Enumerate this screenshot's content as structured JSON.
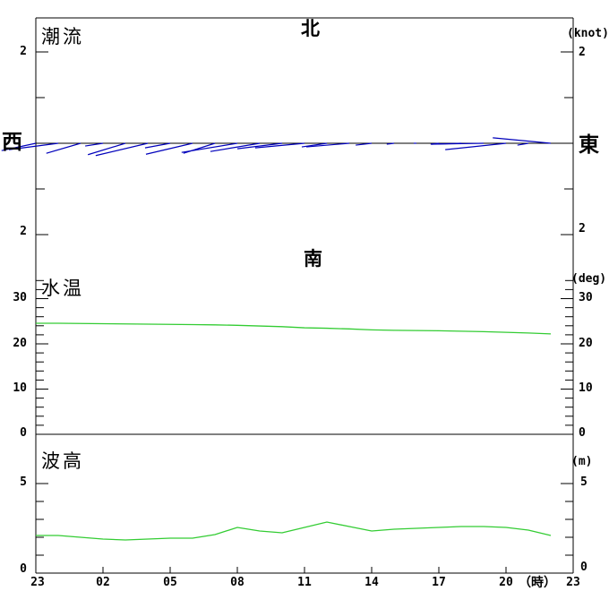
{
  "panel_titles": {
    "current": "潮流",
    "temperature": "水温",
    "wave": "波高"
  },
  "direction_labels": {
    "north": "北",
    "south": "南",
    "west": "西",
    "east": "東"
  },
  "unit_labels": {
    "current": "(knot)",
    "temperature": "(deg)",
    "wave": "(m)"
  },
  "y_axis": {
    "current_upper": "2",
    "current_lower": "2",
    "temp": [
      "30",
      "20",
      "10",
      "0"
    ],
    "wave": [
      "5",
      "0"
    ]
  },
  "x_axis": {
    "labels": [
      "23",
      "02",
      "05",
      "08",
      "11",
      "14",
      "17",
      "20",
      "23"
    ],
    "hour_suffix": "（時）"
  },
  "colors": {
    "background": "#ffffff",
    "axis": "#000000",
    "current_stick": "#0000bb",
    "temperature_line": "#33cc33",
    "wave_line": "#33cc33"
  },
  "chart_data": [
    {
      "type": "scatter",
      "subtype": "vector-stick",
      "title": "潮流",
      "ylabel": "(knot)",
      "legend_position": "none",
      "grid": false,
      "ylim": [
        -2,
        2
      ],
      "axis_note": "north up / south down, west left / east right",
      "hours": [
        23,
        0,
        1,
        2,
        3,
        4,
        5,
        6,
        7,
        8,
        9,
        10,
        11,
        12,
        13,
        14,
        15,
        16,
        17,
        18,
        19,
        20,
        21,
        22
      ],
      "u_east_knots": [
        -0.75,
        -1.08,
        -0.75,
        -0.39,
        -0.82,
        -1.14,
        -0.55,
        -1.02,
        -0.69,
        -1.22,
        -1.08,
        -0.98,
        -1.08,
        -0.55,
        -0.94,
        -0.35,
        -0.16,
        -0.06,
        -0.16,
        -0.67,
        -1.14,
        -1.33,
        -0.24,
        -1.27
      ],
      "v_north_knots": [
        -0.16,
        -0.14,
        -0.22,
        -0.06,
        -0.25,
        -0.27,
        -0.1,
        -0.24,
        -0.22,
        -0.2,
        -0.18,
        -0.12,
        -0.1,
        -0.08,
        -0.08,
        -0.04,
        -0.02,
        0,
        -0.02,
        -0.02,
        -0.02,
        -0.14,
        -0.04,
        0.12
      ]
    },
    {
      "type": "line",
      "title": "水温",
      "ylabel": "(deg)",
      "grid": false,
      "ylim": [
        0,
        34
      ],
      "hours": [
        23,
        0,
        1,
        2,
        3,
        4,
        5,
        6,
        7,
        8,
        9,
        10,
        11,
        12,
        13,
        14,
        15,
        16,
        17,
        18,
        19,
        20,
        21,
        22
      ],
      "values": [
        24.55,
        24.55,
        24.5,
        24.45,
        24.4,
        24.35,
        24.3,
        24.25,
        24.2,
        24.1,
        23.95,
        23.8,
        23.55,
        23.45,
        23.3,
        23.1,
        23.0,
        22.95,
        22.9,
        22.8,
        22.7,
        22.55,
        22.4,
        22.2
      ]
    },
    {
      "type": "line",
      "title": "波高",
      "ylabel": "(m)",
      "grid": false,
      "ylim": [
        0,
        6
      ],
      "hours": [
        23,
        0,
        1,
        2,
        3,
        4,
        5,
        6,
        7,
        8,
        9,
        10,
        11,
        12,
        13,
        14,
        15,
        16,
        17,
        18,
        19,
        20,
        21,
        22
      ],
      "values": [
        2.1,
        2.1,
        2.0,
        1.9,
        1.85,
        1.9,
        1.95,
        1.95,
        2.15,
        2.55,
        2.35,
        2.25,
        2.55,
        2.85,
        2.6,
        2.35,
        2.45,
        2.5,
        2.55,
        2.6,
        2.6,
        2.55,
        2.4,
        2.1
      ]
    }
  ]
}
